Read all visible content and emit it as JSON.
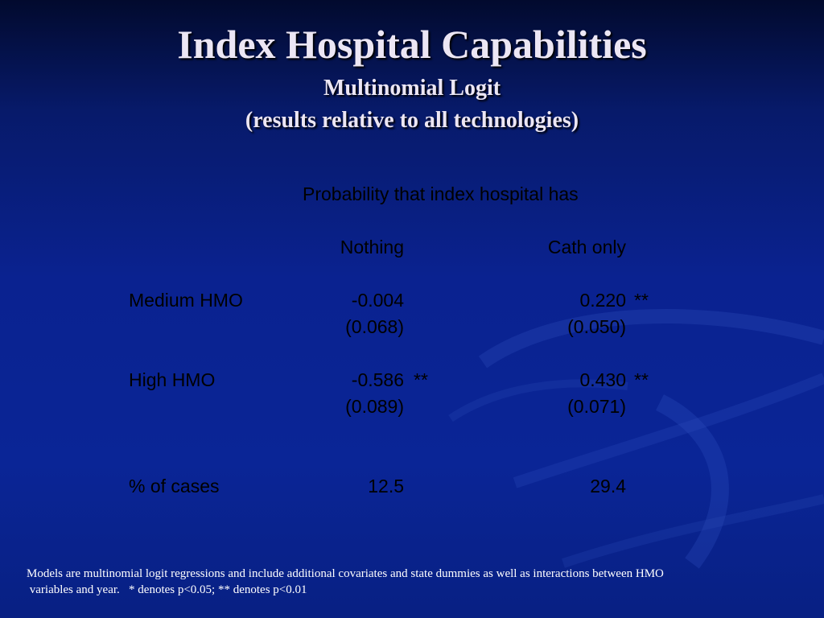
{
  "slide": {
    "title": "Index Hospital Capabilities",
    "subtitle_line1": "Multinomial Logit",
    "subtitle_line2": "(results relative to all technologies)"
  },
  "table": {
    "header": "Probability that index hospital has",
    "columns": [
      "Nothing",
      "Cath only"
    ],
    "rows": [
      {
        "label": "Medium HMO",
        "nothing": "-0.004",
        "nothing_sig": "",
        "nothing_se": "(0.068)",
        "cath": "0.220",
        "cath_sig": "**",
        "cath_se": "(0.050)"
      },
      {
        "label": "High HMO",
        "nothing": "-0.586",
        "nothing_sig": "**",
        "nothing_se": "(0.089)",
        "cath": "0.430",
        "cath_sig": "**",
        "cath_se": "(0.071)"
      },
      {
        "label": "% of cases",
        "nothing": "12.5",
        "cath": "29.4"
      }
    ]
  },
  "footnote": {
    "line1": "Models are multinomial logit regressions and include additional covariates and state dummies as well as interactions between HMO",
    "line2": " variables and year.   * denotes p<0.05; ** denotes p<0.01"
  },
  "colors": {
    "background": "#0a2290",
    "title": "#ece6f4",
    "body_text": "#000000",
    "footnote": "#ffffff"
  }
}
